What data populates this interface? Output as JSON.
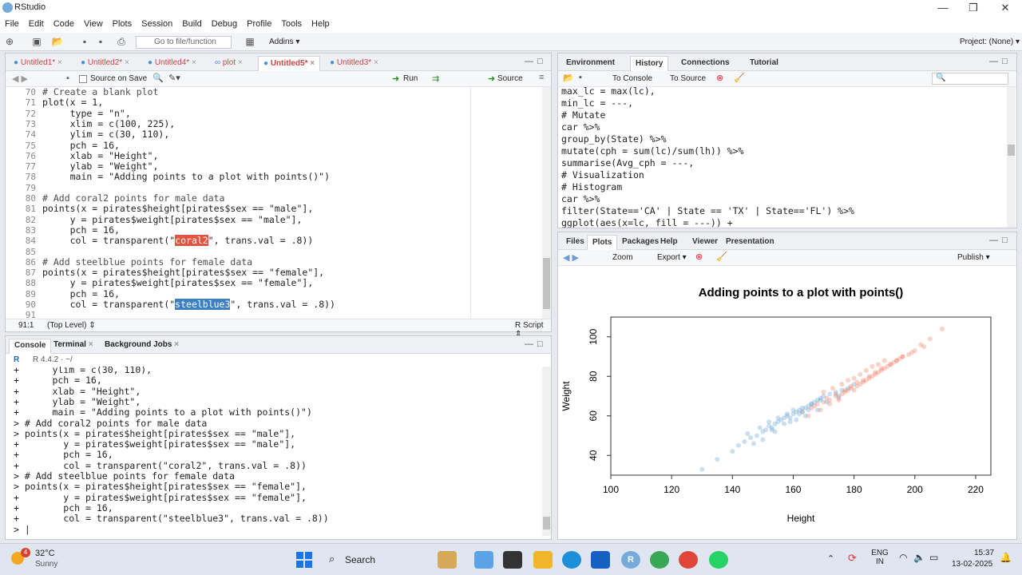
{
  "app": {
    "title": "RStudio"
  },
  "window_controls": {
    "minimize": "—",
    "maximize": "❐",
    "close": "✕"
  },
  "menu": [
    "File",
    "Edit",
    "Code",
    "View",
    "Plots",
    "Session",
    "Build",
    "Debug",
    "Profile",
    "Tools",
    "Help"
  ],
  "toolbar": {
    "goto_placeholder": "Go to file/function",
    "addins": "Addins ▾",
    "project": "Project: (None) ▾"
  },
  "editor": {
    "tabs": [
      "Untitled1*",
      "Untitled2*",
      "Untitled4*",
      "plot",
      "Untitled5*",
      "Untitled3*"
    ],
    "active_tab": 4,
    "source_on_save": "Source on Save",
    "run_label": "Run",
    "source_label": "Source",
    "lines": [
      {
        "n": "70",
        "text": "# Create a blank plot",
        "kind": "cmt"
      },
      {
        "n": "71",
        "text": "plot(x = 1,",
        "kind": "code"
      },
      {
        "n": "72",
        "text": "     type = \"n\",",
        "kind": "code"
      },
      {
        "n": "73",
        "text": "     xlim = c(100, 225),",
        "kind": "code"
      },
      {
        "n": "74",
        "text": "     ylim = c(30, 110),",
        "kind": "code"
      },
      {
        "n": "75",
        "text": "     pch = 16,",
        "kind": "code"
      },
      {
        "n": "76",
        "text": "     xlab = \"Height\",",
        "kind": "code"
      },
      {
        "n": "77",
        "text": "     ylab = \"Weight\",",
        "kind": "code"
      },
      {
        "n": "78",
        "text": "     main = \"Adding points to a plot with points()\")",
        "kind": "code"
      },
      {
        "n": "79",
        "text": "",
        "kind": "code"
      },
      {
        "n": "80",
        "text": "# Add coral2 points for male data",
        "kind": "cmt"
      },
      {
        "n": "81",
        "text": "points(x = pirates$height[pirates$sex == \"male\"],",
        "kind": "code"
      },
      {
        "n": "82",
        "text": "     y = pirates$weight[pirates$sex == \"male\"],",
        "kind": "code"
      },
      {
        "n": "83",
        "text": "     pch = 16,",
        "kind": "code"
      },
      {
        "n": "84",
        "pre": "     col = transparent(\"",
        "hl": "coral2",
        "post": "\", trans.val = .8))",
        "kind": "hlcoral"
      },
      {
        "n": "85",
        "text": "",
        "kind": "code"
      },
      {
        "n": "86",
        "text": "# Add steelblue points for female data",
        "kind": "cmt"
      },
      {
        "n": "87",
        "text": "points(x = pirates$height[pirates$sex == \"female\"],",
        "kind": "code"
      },
      {
        "n": "88",
        "text": "     y = pirates$weight[pirates$sex == \"female\"],",
        "kind": "code"
      },
      {
        "n": "89",
        "text": "     pch = 16,",
        "kind": "code"
      },
      {
        "n": "90",
        "pre": "     col = transparent(\"",
        "hl": "steelblue3",
        "post": "\", trans.val = .8))",
        "kind": "hlsteel"
      },
      {
        "n": "91",
        "text": "",
        "kind": "code"
      }
    ],
    "status_pos": "91:1",
    "status_scope": "(Top Level) ⇕",
    "status_type": "R Script ⇕"
  },
  "console": {
    "tabs": [
      "Console",
      "Terminal",
      "Background Jobs"
    ],
    "r_version": "R 4.4.2 · ~/",
    "lines": [
      "+      ylim = c(30, 110),",
      "+      pch = 16,",
      "+      xlab = \"Height\",",
      "+      ylab = \"Weight\",",
      "+      main = \"Adding points to a plot with points()\")",
      "> # Add coral2 points for male data",
      "> points(x = pirates$height[pirates$sex == \"male\"],",
      "+        y = pirates$weight[pirates$sex == \"male\"],",
      "+        pch = 16,",
      "+        col = transparent(\"coral2\", trans.val = .8))",
      "> # Add steelblue points for female data",
      "> points(x = pirates$height[pirates$sex == \"female\"],",
      "+        y = pirates$weight[pirates$sex == \"female\"],",
      "+        pch = 16,",
      "+        col = transparent(\"steelblue3\", trans.val = .8))",
      "> |"
    ]
  },
  "env": {
    "tabs": [
      "Environment",
      "History",
      "Connections",
      "Tutorial"
    ],
    "to_console": "To Console",
    "to_source": "To Source",
    "lines": [
      "max_lc = max(lc),",
      "min_lc = ---,",
      "# Mutate",
      "car %>%",
      "group_by(State) %>%",
      "mutate(cph = sum(lc)/sum(lh)) %>%",
      "summarise(Avg_cph = ---,",
      "# Visualization",
      "# Histogram",
      "car %>%",
      "filter(State=='CA' | State == 'TX' | State=='FL') %>%",
      "ggplot(aes(x=lc, fill = ---)) +"
    ]
  },
  "plots": {
    "tabs": [
      "Files",
      "Plots",
      "Packages",
      "Help",
      "Viewer",
      "Presentation"
    ],
    "zoom": "Zoom",
    "export": "Export ▾",
    "publish": "Publish ▾"
  },
  "chart_data": {
    "type": "scatter",
    "title": "Adding points to a plot with points()",
    "xlabel": "Height",
    "ylabel": "Weight",
    "xlim": [
      100,
      225
    ],
    "ylim": [
      30,
      110
    ],
    "xticks": [
      100,
      120,
      140,
      160,
      180,
      200,
      220
    ],
    "yticks": [
      40,
      60,
      80,
      100
    ],
    "series": [
      {
        "color": "#ee6a50",
        "x": [
          163,
          166,
          168,
          170,
          172,
          174,
          175,
          176,
          177,
          178,
          179,
          180,
          181,
          182,
          183,
          184,
          185,
          186,
          187,
          188,
          189,
          190,
          191,
          192,
          193,
          194,
          195,
          196,
          198,
          200,
          202,
          205,
          209,
          170,
          173,
          176,
          178,
          180,
          182,
          184,
          186,
          188,
          190,
          167,
          171,
          174,
          177,
          179,
          181,
          183,
          185,
          187,
          189,
          192,
          194,
          196,
          199,
          203,
          165,
          169,
          172,
          175
        ],
        "y": [
          62,
          64,
          66,
          67,
          68,
          70,
          69,
          71,
          72,
          73,
          74,
          73,
          75,
          76,
          77,
          78,
          79,
          80,
          81,
          82,
          83,
          84,
          85,
          86,
          87,
          88,
          89,
          90,
          91,
          93,
          96,
          99,
          104,
          72,
          74,
          76,
          78,
          79,
          81,
          83,
          85,
          86,
          88,
          65,
          69,
          71,
          73,
          75,
          77,
          78,
          80,
          82,
          84,
          86,
          88,
          90,
          92,
          95,
          60,
          63,
          66,
          68
        ]
      },
      {
        "color": "#4f94cd",
        "x": [
          130,
          135,
          140,
          142,
          144,
          146,
          148,
          150,
          151,
          152,
          153,
          154,
          155,
          156,
          157,
          158,
          159,
          160,
          161,
          162,
          163,
          164,
          165,
          166,
          167,
          168,
          169,
          170,
          172,
          174,
          176,
          178,
          180,
          145,
          149,
          152,
          155,
          158,
          160,
          163,
          166,
          169,
          150,
          154,
          157,
          161,
          164,
          168,
          171,
          175,
          147,
          153,
          159,
          162,
          165
        ],
        "y": [
          33,
          38,
          42,
          45,
          47,
          49,
          50,
          52,
          53,
          55,
          54,
          56,
          57,
          58,
          59,
          60,
          59,
          61,
          62,
          63,
          62,
          64,
          65,
          66,
          67,
          68,
          68,
          70,
          71,
          72,
          73,
          74,
          76,
          51,
          54,
          57,
          59,
          61,
          63,
          64,
          66,
          69,
          48,
          52,
          56,
          58,
          60,
          63,
          67,
          70,
          46,
          53,
          57,
          61,
          63
        ]
      }
    ]
  },
  "taskbar": {
    "weather_temp": "32°C",
    "weather_desc": "Sunny",
    "weather_badge": "4",
    "search": "Search",
    "lang1": "ENG",
    "lang2": "IN",
    "time": "15:37",
    "date": "13-02-2025"
  }
}
